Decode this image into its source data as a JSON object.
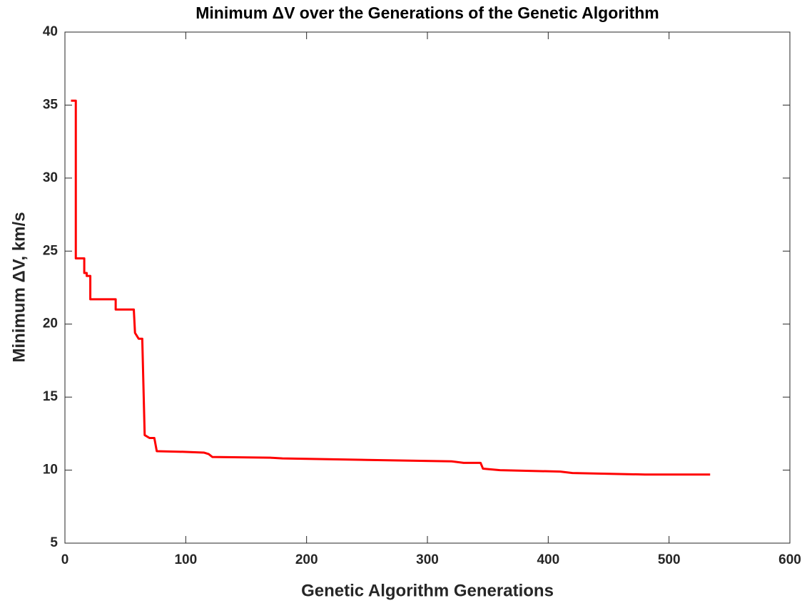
{
  "chart_data": {
    "type": "line",
    "title": "Minimum ΔV over the Generations of the Genetic Algorithm",
    "xlabel": "Genetic Algorithm Generations",
    "ylabel": "Minimum ΔV, km/s",
    "x": [
      5,
      9,
      9,
      16,
      16,
      18,
      18,
      21,
      21,
      42,
      42,
      57,
      58,
      61,
      64,
      66,
      66,
      70,
      74,
      76,
      100,
      115,
      119,
      122,
      170,
      180,
      250,
      320,
      330,
      344,
      346,
      360,
      410,
      420,
      480,
      534
    ],
    "series": [
      {
        "name": "Minimum ΔV",
        "color": "#ff0000",
        "values": [
          35.3,
          35.3,
          24.5,
          24.5,
          23.5,
          23.5,
          23.3,
          23.3,
          21.7,
          21.7,
          21.0,
          21.0,
          19.4,
          19.0,
          19.0,
          12.4,
          12.4,
          12.2,
          12.2,
          11.3,
          11.25,
          11.2,
          11.1,
          10.9,
          10.85,
          10.8,
          10.7,
          10.6,
          10.5,
          10.5,
          10.1,
          10.0,
          9.9,
          9.8,
          9.7,
          9.7
        ]
      }
    ],
    "xlim": [
      0,
      600
    ],
    "xticks": [
      0,
      100,
      200,
      300,
      400,
      500,
      600
    ],
    "ylim": [
      5,
      40
    ],
    "yticks": [
      5,
      10,
      15,
      20,
      25,
      30,
      35,
      40
    ],
    "grid": false
  }
}
